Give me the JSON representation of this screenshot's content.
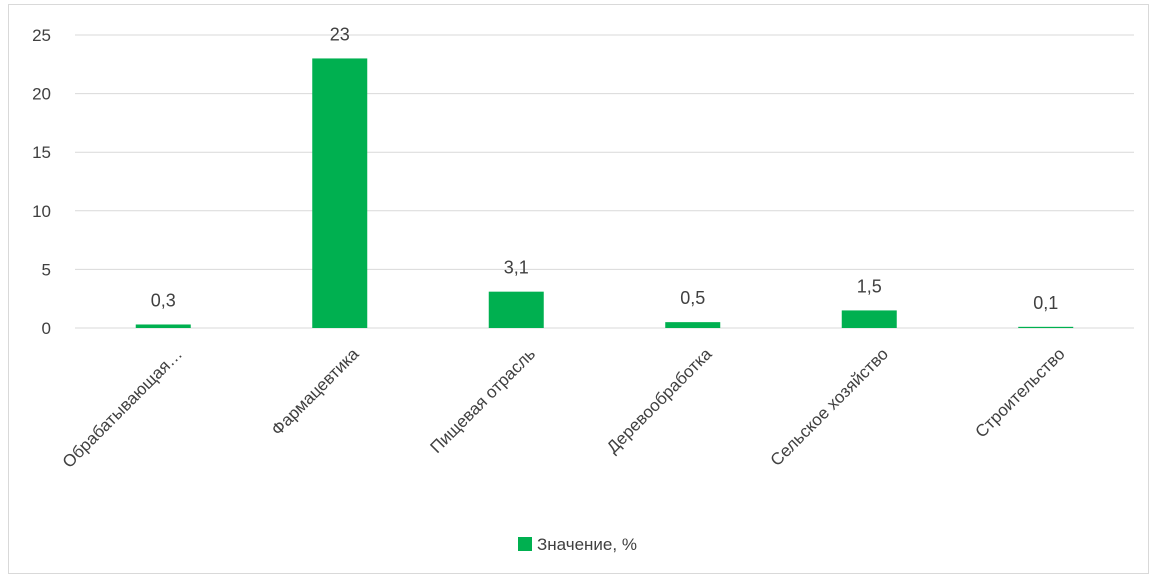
{
  "chart_data": {
    "type": "bar",
    "categories": [
      "Обрабатывающая…",
      "Фармацевтика",
      "Пищевая отрасль",
      "Деревообработка",
      "Сельское хозяйство",
      "Строительство"
    ],
    "series": [
      {
        "name": "Значение, %",
        "values": [
          0.3,
          23,
          3.1,
          0.5,
          1.5,
          0.1
        ],
        "labels": [
          "0,3",
          "23",
          "3,1",
          "0,5",
          "1,5",
          "0,1"
        ],
        "color": "#00b050"
      }
    ],
    "ylim": [
      0,
      25
    ],
    "yticks": [
      0,
      5,
      10,
      15,
      20,
      25
    ],
    "ytick_labels": [
      "0",
      "5",
      "10",
      "15",
      "20",
      "25"
    ],
    "grid": true,
    "legend_position": "bottom",
    "title": "",
    "xlabel": "",
    "ylabel": ""
  }
}
